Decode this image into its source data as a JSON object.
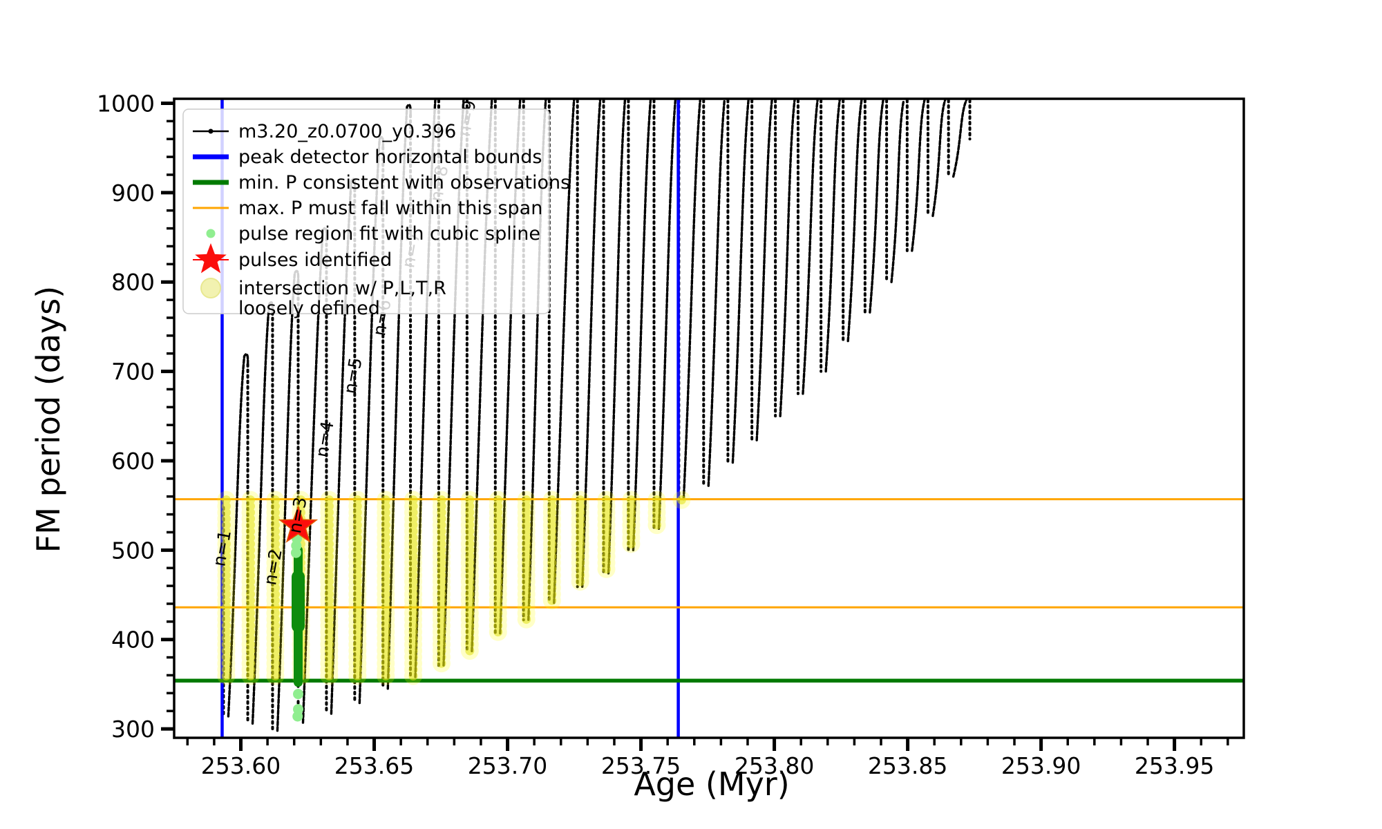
{
  "colors": {
    "track": "#000000",
    "peak_detector": "#0000ff",
    "min_p_line": "#007a00",
    "max_p_line": "#ffa500",
    "spline_dot": "#90ee90",
    "spline_strip": "#0d8c0d",
    "pulse_star": "#fb0f0c",
    "intersection_fill": "rgba(255,255,0,0.22)",
    "intersection_core": "rgba(225,225,20,0.55)",
    "legend_bg": "rgba(255,255,255,0.82)",
    "legend_border": "#cccccc"
  },
  "chart_data": {
    "type": "line",
    "title": "",
    "xlabel": "Age (Myr)",
    "ylabel": "FM period (days)",
    "xlim": [
      253.575,
      253.976
    ],
    "ylim": [
      290,
      1005
    ],
    "grid": false,
    "legend_position": "upper left",
    "xtick_labels": [
      "253.60",
      "253.65",
      "253.70",
      "253.75",
      "253.80",
      "253.85",
      "253.90",
      "253.95"
    ],
    "xticks": [
      253.6,
      253.65,
      253.7,
      253.75,
      253.8,
      253.85,
      253.9,
      253.95
    ],
    "x_minor_step": 0.01,
    "ytick_labels": [
      "300",
      "400",
      "500",
      "600",
      "700",
      "800",
      "900",
      "1000"
    ],
    "yticks": [
      300,
      400,
      500,
      600,
      700,
      800,
      900,
      1000
    ],
    "y_minor_step": 20,
    "legend": [
      {
        "label": "m3.20_z0.0700_y0.396",
        "marker": "line-dot",
        "color": "#000000"
      },
      {
        "label": "peak detector horizontal bounds",
        "marker": "thick-line",
        "color": "#0000ff"
      },
      {
        "label": "min. P consistent with observations",
        "marker": "thick-line",
        "color": "#007a00"
      },
      {
        "label": "max. P must fall within this span",
        "marker": "line",
        "color": "#ffa500"
      },
      {
        "label": "pulse region fit with cubic spline",
        "marker": "dot",
        "color": "#90ee90"
      },
      {
        "label": "pulses identified",
        "marker": "star",
        "color": "#fb0f0c"
      },
      {
        "label": "intersection w/ P,L,T,R",
        "label2": "loosely defined",
        "marker": "big-dot",
        "color": "#f2f2b0"
      }
    ],
    "peak_detector_bounds_age": [
      253.593,
      253.764
    ],
    "min_P_observations": 354,
    "max_P_span": [
      436,
      557
    ],
    "yellow_band": {
      "top_period": 557,
      "bottom_period": 354,
      "age_range": [
        253.593,
        253.765
      ]
    },
    "pulse_star": {
      "age": 253.6215,
      "period": 527
    },
    "spline_region": {
      "age": 253.6215,
      "period_top": 500,
      "period_bottom": 352
    },
    "spline_dots": [
      [
        253.621,
        513
      ],
      [
        253.6208,
        505
      ],
      [
        253.6207,
        497
      ],
      [
        253.6215,
        339
      ],
      [
        253.6215,
        322
      ],
      [
        253.6213,
        314
      ]
    ],
    "pulse_cycles": [
      {
        "drop_age": 253.5935,
        "bottom": 314,
        "peak": 557
      },
      {
        "drop_age": 253.6026,
        "bottom": 306,
        "peak": 717
      },
      {
        "drop_age": 253.6119,
        "bottom": 298,
        "peak": 775
      },
      {
        "drop_age": 253.6215,
        "bottom": 307,
        "peak": 810
      },
      {
        "drop_age": 253.6321,
        "bottom": 317,
        "peak": 858
      },
      {
        "drop_age": 253.6427,
        "bottom": 329,
        "peak": 913
      },
      {
        "drop_age": 253.6533,
        "bottom": 345,
        "peak": 960
      },
      {
        "drop_age": 253.6636,
        "bottom": 358,
        "peak": 996
      },
      {
        "drop_age": 253.6742,
        "bottom": 371,
        "peak": 1010
      },
      {
        "drop_age": 253.6848,
        "bottom": 387,
        "peak": 1010
      },
      {
        "drop_age": 253.6954,
        "bottom": 407,
        "peak": 1010
      },
      {
        "drop_age": 253.706,
        "bottom": 422,
        "peak": 1010
      },
      {
        "drop_age": 253.7156,
        "bottom": 441,
        "peak": 1010
      },
      {
        "drop_age": 253.7262,
        "bottom": 459,
        "peak": 1010
      },
      {
        "drop_age": 253.736,
        "bottom": 474,
        "peak": 1010
      },
      {
        "drop_age": 253.7453,
        "bottom": 500,
        "peak": 1010
      },
      {
        "drop_age": 253.7549,
        "bottom": 524,
        "peak": 1010
      },
      {
        "drop_age": 253.7642,
        "bottom": 557,
        "peak": 1010
      },
      {
        "drop_age": 253.7735,
        "bottom": 572,
        "peak": 1010
      },
      {
        "drop_age": 253.7826,
        "bottom": 598,
        "peak": 1010
      },
      {
        "drop_age": 253.7916,
        "bottom": 623,
        "peak": 1010
      },
      {
        "drop_age": 253.8004,
        "bottom": 650,
        "peak": 1010
      },
      {
        "drop_age": 253.8089,
        "bottom": 675,
        "peak": 1010
      },
      {
        "drop_age": 253.8175,
        "bottom": 700,
        "peak": 1010
      },
      {
        "drop_age": 253.8258,
        "bottom": 734,
        "peak": 1010
      },
      {
        "drop_age": 253.834,
        "bottom": 766,
        "peak": 1010
      },
      {
        "drop_age": 253.8421,
        "bottom": 800,
        "peak": 1010
      },
      {
        "drop_age": 253.8498,
        "bottom": 835,
        "peak": 1010
      },
      {
        "drop_age": 253.8576,
        "bottom": 874,
        "peak": 1010
      },
      {
        "drop_age": 253.8653,
        "bottom": 918,
        "peak": 1010
      },
      {
        "drop_age": 253.8733,
        "bottom": 960,
        "peak": 1010
      }
    ],
    "annotations": [
      {
        "label": "n=1",
        "age": 253.5951,
        "period": 501
      },
      {
        "label": "n=2",
        "age": 253.6142,
        "period": 480
      },
      {
        "label": "n=3",
        "age": 253.6235,
        "period": 538
      },
      {
        "label": "n=4",
        "age": 253.6336,
        "period": 623
      },
      {
        "label": "n=5",
        "age": 253.6442,
        "period": 694
      },
      {
        "label": "n=6",
        "age": 253.6551,
        "period": 759
      },
      {
        "label": "n=7",
        "age": 253.666,
        "period": 835
      },
      {
        "label": "n=8",
        "age": 253.6765,
        "period": 909
      },
      {
        "label": "n=9",
        "age": 253.6869,
        "period": 982
      }
    ]
  }
}
